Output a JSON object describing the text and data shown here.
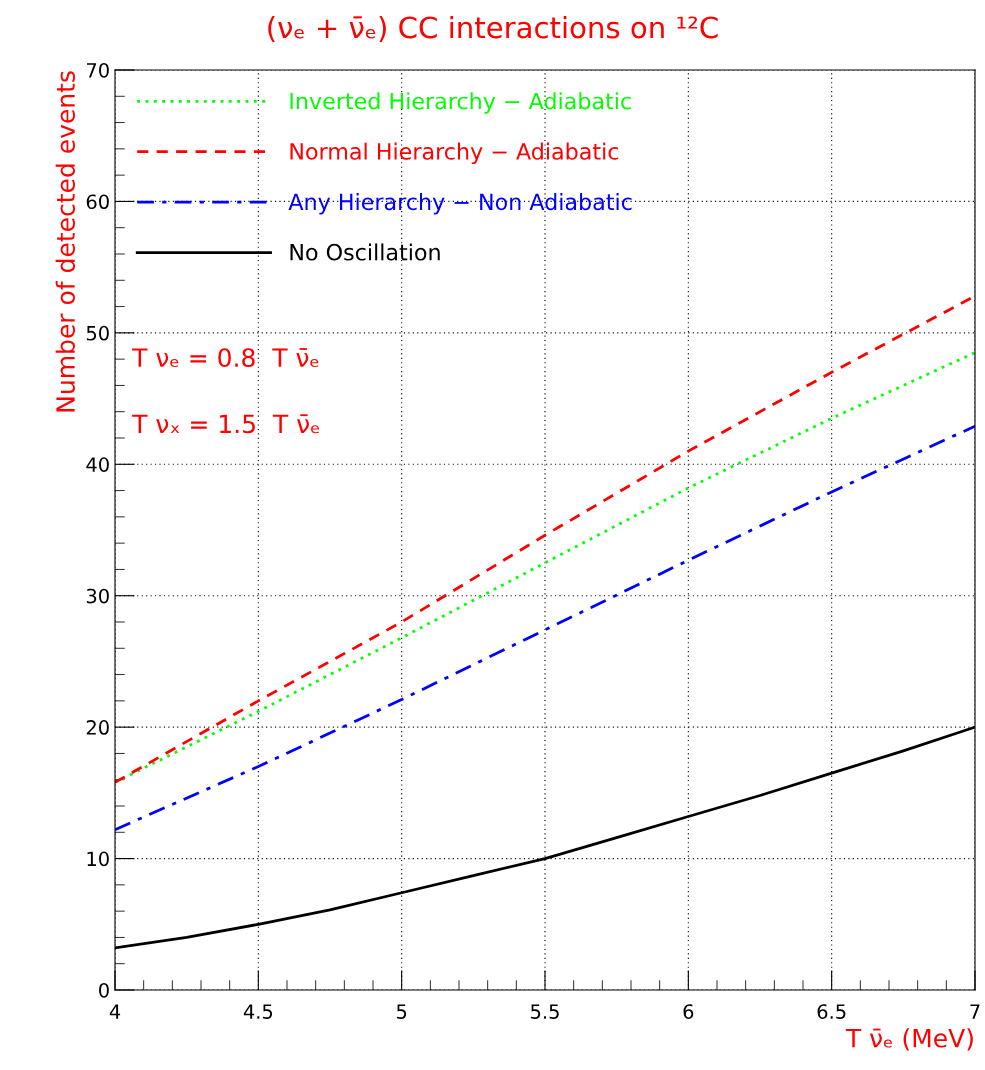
{
  "chart_data": {
    "type": "line",
    "title": "(νₑ + ν̄ₑ) CC interactions on ¹²C",
    "xlabel": "T ν̄ₑ (MeV)",
    "ylabel": "Number of detected events",
    "x": [
      4,
      4.5,
      5,
      5.5,
      6,
      6.5,
      7
    ],
    "series": [
      {
        "name": "Inverted Hierarchy − Adiabatic",
        "color": "#00ff00",
        "line_style": "dotted",
        "values": [
          15.8,
          21.2,
          26.8,
          32.5,
          38.2,
          43.5,
          48.5
        ]
      },
      {
        "name": "Normal Hierarchy − Adiabatic",
        "color": "#ff0000",
        "line_style": "dashed",
        "values": [
          15.8,
          22.0,
          28.0,
          34.6,
          41.0,
          47.0,
          52.8
        ]
      },
      {
        "name": "Any Hierarchy − Non Adiabatic",
        "color": "#0000ff",
        "line_style": "dashdot",
        "values": [
          12.2,
          17.0,
          22.1,
          27.4,
          32.7,
          37.9,
          42.9
        ]
      },
      {
        "name": "No Oscillation",
        "color": "#000000",
        "line_style": "solid",
        "x": [
          4,
          4.25,
          4.5,
          4.75,
          5,
          5.25,
          5.5,
          5.75,
          6,
          6.25,
          6.5,
          6.75,
          7
        ],
        "values": [
          3.2,
          4.0,
          5.0,
          6.1,
          7.4,
          8.7,
          10.0,
          11.6,
          13.2,
          14.8,
          16.5,
          18.2,
          20.0
        ]
      }
    ],
    "xlim": [
      4,
      7
    ],
    "xticks": [
      4,
      4.5,
      5,
      5.5,
      6,
      6.5,
      7
    ],
    "ylim": [
      0,
      70
    ],
    "yticks": [
      0,
      10,
      20,
      30,
      40,
      50,
      60,
      70
    ],
    "grid": true,
    "legend": "top left",
    "annotations": [
      "T νₑ = 0.8  T ν̄ₑ",
      "T νₓ = 1.5  T ν̄ₑ"
    ]
  }
}
